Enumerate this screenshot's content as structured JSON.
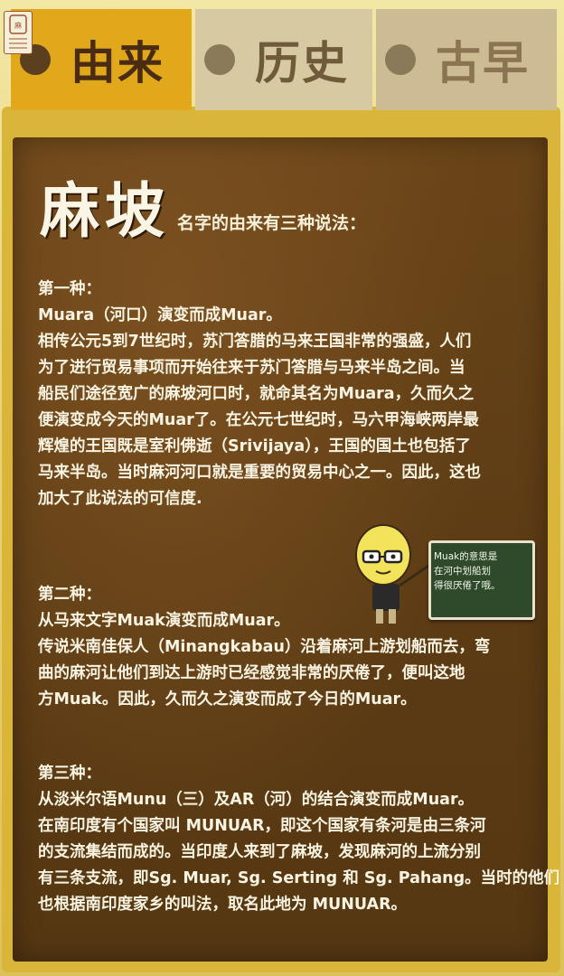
{
  "logo": {
    "text": "麻坡"
  },
  "tabs": [
    {
      "label": "由来",
      "active": true
    },
    {
      "label": "历史",
      "active": false
    },
    {
      "label": "古早",
      "active": false
    }
  ],
  "title": "麻坡",
  "subtitle": "名字的由来有三种说法：",
  "sections": [
    {
      "heading": "第一种：",
      "lines": [
        "Muara（河口）演变而成Muar。",
        "相传公元5到7世纪时，苏门答腊的马来王国非常的强盛，人们",
        "为了进行贸易事项而开始往来于苏门答腊与马来半岛之间。当",
        "船民们途径宽广的麻坡河口时，就命其名为Muara，久而久之",
        "便演变成今天的Muar了。在公元七世纪时，马六甲海峡两岸最",
        "辉煌的王国既是室利佛逝（Srivijaya），王国的国土也包括了",
        "马来半岛。当时麻河河口就是重要的贸易中心之一。因此，这也",
        "加大了此说法的可信度."
      ]
    },
    {
      "heading": "第二种：",
      "lines": [
        "从马来文字Muak演变而成Muar。",
        "传说米南佳保人（Minangkabau）沿着麻河上游划船而去，弯",
        "曲的麻河让他们到达上游时已经感觉非常的厌倦了，便叫这地",
        "方Muak。因此，久而久之演变而成了今日的Muar。"
      ]
    },
    {
      "heading": "第三种：",
      "lines": [
        "从淡米尔语Munu（三）及AR（河）的结合演变而成Muar。",
        "在南印度有个国家叫 MUNUAR，即这个国家有条河是由三条河",
        "的支流集结而成的。当印度人来到了麻坡，发现麻河的上流分别",
        "有三条支流，即Sg. Muar, Sg. Serting 和 Sg. Pahang。当时的他们",
        "也根据南印度家乡的叫法，取名此地为 MUNUAR。"
      ]
    }
  ],
  "chalkboard": {
    "lines": [
      "Muak的意思是",
      "在河中划船划",
      "得很厌倦了哦。"
    ]
  },
  "colors": {
    "board": "#5d3c15",
    "active_tab": "#e1a81c",
    "text": "#fbf4e2"
  }
}
